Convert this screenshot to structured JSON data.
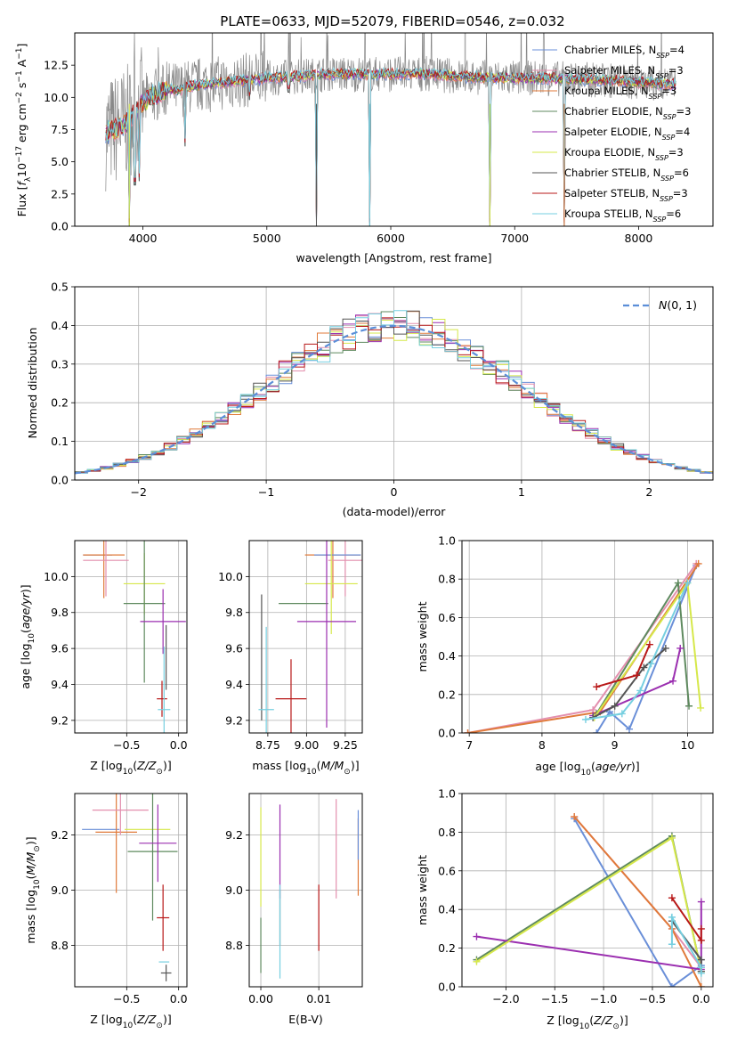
{
  "figure_title": "PLATE=0633, MJD=52079, FIBERID=0546, z=0.032",
  "colors": {
    "chabrier_miles": "#6a8fd8",
    "salpeter_miles": "#e38fae",
    "kroupa_miles": "#e07a3a",
    "chabrier_elodie": "#5f8a5f",
    "salpeter_elodie": "#9b2fb0",
    "kroupa_elodie": "#d6e84a",
    "chabrier_stelib": "#555555",
    "salpeter_stelib": "#b81818",
    "kroupa_stelib": "#76cfe0",
    "data": "#888888",
    "gaussian": "#5b8ed8"
  },
  "chart_data": [
    {
      "id": "spectrum",
      "type": "line",
      "title": "PLATE=0633, MJD=52079, FIBERID=0546, z=0.032",
      "xlabel": "wavelength [Angstrom, rest frame]",
      "ylabel": "Flux [f_λ 10^-17 erg cm^-2 s^-1 A^-1]",
      "xlim": [
        3450,
        8600
      ],
      "ylim": [
        0,
        15
      ],
      "xticks": [
        "4000",
        "5000",
        "6000",
        "7000",
        "8000"
      ],
      "yticks": [
        "0.0",
        "2.5",
        "5.0",
        "7.5",
        "10.0",
        "12.5"
      ],
      "legend_position": "top-right",
      "legend": [
        {
          "name": "Chabrier MILES, N",
          "sub": "SSP",
          "tail": "=4",
          "color": "#6a8fd8"
        },
        {
          "name": "Salpeter MILES, N",
          "sub": "SSP",
          "tail": "=3",
          "color": "#e38fae"
        },
        {
          "name": "Kroupa MILES, N",
          "sub": "SSP",
          "tail": "=3",
          "color": "#e07a3a"
        },
        {
          "name": "Chabrier ELODIE, N",
          "sub": "SSP",
          "tail": "=3",
          "color": "#5f8a5f"
        },
        {
          "name": "Salpeter ELODIE, N",
          "sub": "SSP",
          "tail": "=4",
          "color": "#9b2fb0"
        },
        {
          "name": "Kroupa ELODIE, N",
          "sub": "SSP",
          "tail": "=3",
          "color": "#d6e84a"
        },
        {
          "name": "Chabrier STELIB, N",
          "sub": "SSP",
          "tail": "=6",
          "color": "#555555"
        },
        {
          "name": "Salpeter STELIB, N",
          "sub": "SSP",
          "tail": "=3",
          "color": "#b81818"
        },
        {
          "name": "Kroupa STELIB, N",
          "sub": "SSP",
          "tail": "=6",
          "color": "#76cfe0"
        }
      ],
      "continuum": [
        [
          3700,
          7.2
        ],
        [
          3800,
          7.6
        ],
        [
          3900,
          8.3
        ],
        [
          4000,
          9.6
        ],
        [
          4100,
          10.2
        ],
        [
          4200,
          10.6
        ],
        [
          4300,
          10.6
        ],
        [
          4400,
          10.9
        ],
        [
          4600,
          11.1
        ],
        [
          4800,
          11.3
        ],
        [
          5000,
          11.5
        ],
        [
          5200,
          11.6
        ],
        [
          5500,
          11.8
        ],
        [
          5800,
          11.8
        ],
        [
          6000,
          11.8
        ],
        [
          6300,
          11.8
        ],
        [
          6600,
          11.6
        ],
        [
          6900,
          11.5
        ],
        [
          7200,
          11.5
        ],
        [
          7500,
          11.4
        ],
        [
          7800,
          11.3
        ],
        [
          8100,
          11.1
        ],
        [
          8300,
          11.0
        ]
      ],
      "dips": [
        [
          3890,
          0.0
        ],
        [
          3935,
          3.2
        ],
        [
          3970,
          3.5
        ],
        [
          4340,
          6.2
        ],
        [
          5400,
          0.0
        ],
        [
          5830,
          0.0
        ],
        [
          6800,
          0.0
        ],
        [
          7400,
          0.0
        ],
        [
          4860,
          9.8
        ],
        [
          5175,
          10.4
        ]
      ]
    },
    {
      "id": "residuals",
      "type": "histogram",
      "xlabel": "(data-model)/error",
      "ylabel": "Normed distribution",
      "xlim": [
        -2.5,
        2.5
      ],
      "ylim": [
        0,
        0.5
      ],
      "xticks": [
        "−2",
        "−1",
        "0",
        "1",
        "2"
      ],
      "yticks": [
        "0.0",
        "0.1",
        "0.2",
        "0.3",
        "0.4",
        "0.5"
      ],
      "bin_width": 0.1,
      "grid": true,
      "legend_position": "top-right",
      "gaussian_label": "N(0, 1)"
    },
    {
      "id": "age_vs_Z",
      "type": "errorbar",
      "xlabel": "Z [log10(Z/Z⊙)]",
      "ylabel": "age [log10(age/yr)]",
      "xlim": [
        -1.0,
        0.08
      ],
      "ylim": [
        9.13,
        10.2
      ],
      "xticks": [
        -0.5,
        0.0
      ],
      "yticks": [
        9.2,
        9.4,
        9.6,
        9.8,
        10.0
      ],
      "points": [
        {
          "m": "chabrier_miles",
          "x": -0.78,
          "xe": 0.14,
          "y": 10.12,
          "ye": 0.0
        },
        {
          "m": "kroupa_miles",
          "x": -0.72,
          "xe": 0.2,
          "y": 10.12,
          "ye": 0.24
        },
        {
          "m": "salpeter_miles",
          "x": -0.7,
          "xe": 0.22,
          "y": 10.09,
          "ye": 0.2
        },
        {
          "m": "kroupa_elodie",
          "x": -0.33,
          "xe": 0.2,
          "y": 9.96,
          "ye": 0.17
        },
        {
          "m": "chabrier_elodie",
          "x": -0.33,
          "xe": 0.2,
          "y": 9.85,
          "ye": 0.44
        },
        {
          "m": "salpeter_elodie",
          "x": -0.15,
          "xe": 0.22,
          "y": 9.75,
          "ye": 0.18
        },
        {
          "m": "chabrier_stelib",
          "x": -0.12,
          "xe": 0.0,
          "y": 9.55,
          "ye": 0.18
        },
        {
          "m": "salpeter_stelib",
          "x": -0.16,
          "xe": 0.05,
          "y": 9.32,
          "ye": 0.1
        },
        {
          "m": "kroupa_stelib",
          "x": -0.14,
          "xe": 0.06,
          "y": 9.26,
          "ye": 0.35
        }
      ]
    },
    {
      "id": "age_vs_mass",
      "type": "errorbar",
      "xlabel": "mass [log10(M/M⊙)]",
      "ylabel": "",
      "xlim": [
        8.63,
        9.36
      ],
      "ylim": [
        9.13,
        10.2
      ],
      "xticks": [
        8.75,
        9.0,
        9.25
      ],
      "yticks": [
        9.2,
        9.4,
        9.6,
        9.8,
        10.0
      ],
      "points": [
        {
          "m": "kroupa_miles",
          "x": 9.17,
          "xe": 0.18,
          "y": 10.12,
          "ye": 0.24
        },
        {
          "m": "salpeter_miles",
          "x": 9.25,
          "xe": 0.11,
          "y": 10.09,
          "ye": 0.2
        },
        {
          "m": "chabrier_miles",
          "x": 9.2,
          "xe": 0.15,
          "y": 10.12,
          "ye": 0.0
        },
        {
          "m": "kroupa_elodie",
          "x": 9.16,
          "xe": 0.17,
          "y": 9.96,
          "ye": 0.28
        },
        {
          "m": "chabrier_elodie",
          "x": 8.98,
          "xe": 0.16,
          "y": 9.85,
          "ye": 0.0
        },
        {
          "m": "salpeter_elodie",
          "x": 9.13,
          "xe": 0.19,
          "y": 9.75,
          "ye": 0.59
        },
        {
          "m": "chabrier_stelib",
          "x": 8.71,
          "xe": 0.0,
          "y": 9.55,
          "ye": 0.35
        },
        {
          "m": "salpeter_stelib",
          "x": 8.9,
          "xe": 0.1,
          "y": 9.32,
          "ye": 0.22
        },
        {
          "m": "kroupa_stelib",
          "x": 8.74,
          "xe": 0.05,
          "y": 9.26,
          "ye": 0.46
        }
      ]
    },
    {
      "id": "weight_vs_age",
      "type": "line",
      "xlabel": "age [log10(age/yr)]",
      "ylabel": "mass weight",
      "xlim": [
        6.9,
        10.35
      ],
      "ylim": [
        0,
        1
      ],
      "xticks": [
        7,
        8,
        9,
        10
      ],
      "yticks": [
        0.0,
        0.2,
        0.4,
        0.6,
        0.8,
        1.0
      ],
      "grid": true,
      "series": [
        {
          "m": "chabrier_miles",
          "pts": [
            [
              8.75,
              0.0
            ],
            [
              8.93,
              0.11
            ],
            [
              9.2,
              0.02
            ],
            [
              10.12,
              0.87
            ]
          ]
        },
        {
          "m": "salpeter_miles",
          "pts": [
            [
              6.98,
              0.0
            ],
            [
              8.7,
              0.12
            ],
            [
              10.12,
              0.88
            ]
          ]
        },
        {
          "m": "kroupa_miles",
          "pts": [
            [
              6.98,
              0.0
            ],
            [
              8.8,
              0.11
            ],
            [
              10.15,
              0.88
            ]
          ]
        },
        {
          "m": "chabrier_elodie",
          "pts": [
            [
              8.75,
              0.1
            ],
            [
              9.87,
              0.78
            ],
            [
              10.02,
              0.14
            ]
          ]
        },
        {
          "m": "salpeter_elodie",
          "pts": [
            [
              8.7,
              0.09
            ],
            [
              9.8,
              0.27
            ],
            [
              9.9,
              0.44
            ]
          ]
        },
        {
          "m": "kroupa_elodie",
          "pts": [
            [
              8.72,
              0.08
            ],
            [
              10.0,
              0.78
            ],
            [
              10.18,
              0.13
            ]
          ]
        },
        {
          "m": "chabrier_stelib",
          "pts": [
            [
              8.7,
              0.08
            ],
            [
              9.0,
              0.14
            ],
            [
              9.4,
              0.34
            ],
            [
              9.7,
              0.44
            ]
          ]
        },
        {
          "m": "salpeter_stelib",
          "pts": [
            [
              8.75,
              0.24
            ],
            [
              9.3,
              0.3
            ],
            [
              9.48,
              0.46
            ]
          ]
        },
        {
          "m": "kroupa_stelib",
          "pts": [
            [
              8.6,
              0.07
            ],
            [
              9.1,
              0.1
            ],
            [
              9.35,
              0.22
            ],
            [
              9.5,
              0.36
            ],
            [
              10.0,
              0.78
            ]
          ]
        }
      ]
    },
    {
      "id": "mass_vs_Z",
      "type": "errorbar",
      "xlabel": "Z [log10(Z/Z⊙)]",
      "ylabel": "mass [log10(M/M⊙)]",
      "xlim": [
        -1.0,
        0.08
      ],
      "ylim": [
        8.65,
        9.35
      ],
      "xticks": [
        -0.5,
        0.0
      ],
      "yticks": [
        8.8,
        9.0,
        9.2
      ],
      "points": [
        {
          "m": "chabrier_miles",
          "x": -0.75,
          "xe": 0.18,
          "y": 9.22,
          "ye": 0.0
        },
        {
          "m": "kroupa_miles",
          "x": -0.6,
          "xe": 0.2,
          "y": 9.21,
          "ye": 0.22
        },
        {
          "m": "salpeter_miles",
          "x": -0.56,
          "xe": 0.27,
          "y": 9.29,
          "ye": 0.09
        },
        {
          "m": "kroupa_elodie",
          "x": -0.3,
          "xe": 0.22,
          "y": 9.22,
          "ye": 0.0
        },
        {
          "m": "chabrier_elodie",
          "x": -0.25,
          "xe": 0.24,
          "y": 9.14,
          "ye": 0.25
        },
        {
          "m": "salpeter_elodie",
          "x": -0.2,
          "xe": 0.18,
          "y": 9.17,
          "ye": 0.14
        },
        {
          "m": "salpeter_stelib",
          "x": -0.15,
          "xe": 0.06,
          "y": 8.9,
          "ye": 0.12
        },
        {
          "m": "kroupa_stelib",
          "x": -0.14,
          "xe": 0.05,
          "y": 8.74,
          "ye": 0.0
        },
        {
          "m": "chabrier_stelib",
          "x": -0.12,
          "xe": 0.05,
          "y": 8.7,
          "ye": 0.03
        }
      ]
    },
    {
      "id": "mass_vs_ebv",
      "type": "errorbar",
      "xlabel": "E(B-V)",
      "ylabel": "",
      "xlim": [
        -0.002,
        0.0175
      ],
      "ylim": [
        8.65,
        9.35
      ],
      "xticks": [
        0.0,
        0.01
      ],
      "yticks": [
        8.8,
        9.0,
        9.2
      ],
      "points": [
        {
          "m": "kroupa_elodie",
          "x": 0.0,
          "xe": 0.0,
          "y": 9.12,
          "ye": 0.18
        },
        {
          "m": "chabrier_elodie",
          "x": 0.0,
          "xe": 0.0,
          "y": 8.8,
          "ye": 0.1
        },
        {
          "m": "salpeter_elodie",
          "x": 0.0033,
          "xe": 0.0,
          "y": 9.14,
          "ye": 0.17
        },
        {
          "m": "chabrier_stelib",
          "x": 0.0033,
          "xe": 0.0,
          "y": 8.9,
          "ye": 0.1
        },
        {
          "m": "kroupa_stelib",
          "x": 0.0033,
          "xe": 0.0,
          "y": 8.85,
          "ye": 0.17
        },
        {
          "m": "salpeter_stelib",
          "x": 0.01,
          "xe": 0.0,
          "y": 8.9,
          "ye": 0.12
        },
        {
          "m": "salpeter_miles",
          "x": 0.013,
          "xe": 0.0,
          "y": 9.15,
          "ye": 0.18
        },
        {
          "m": "kroupa_miles",
          "x": 0.0168,
          "xe": 0.0,
          "y": 9.12,
          "ye": 0.14
        },
        {
          "m": "chabrier_miles",
          "x": 0.0168,
          "xe": 0.0,
          "y": 9.2,
          "ye": 0.09
        }
      ]
    },
    {
      "id": "weight_vs_Z",
      "type": "line",
      "xlabel": "Z [log10(Z/Z⊙)]",
      "ylabel": "mass weight",
      "xlim": [
        -2.45,
        0.12
      ],
      "ylim": [
        0,
        1
      ],
      "xticks": [
        -2.0,
        -1.5,
        -1.0,
        -0.5,
        0.0
      ],
      "yticks": [
        0.0,
        0.2,
        0.4,
        0.6,
        0.8,
        1.0
      ],
      "grid": true,
      "series": [
        {
          "m": "chabrier_miles",
          "pts": [
            [
              -1.3,
              0.87
            ],
            [
              -0.3,
              0.0
            ],
            [
              0.0,
              0.11
            ]
          ]
        },
        {
          "m": "salpeter_miles",
          "pts": [
            [
              -1.3,
              0.88
            ],
            [
              -0.3,
              0.3
            ],
            [
              0.0,
              0.1
            ]
          ]
        },
        {
          "m": "kroupa_miles",
          "pts": [
            [
              -1.3,
              0.88
            ],
            [
              -0.3,
              0.3
            ],
            [
              0.0,
              0.0
            ]
          ]
        },
        {
          "m": "chabrier_elodie",
          "pts": [
            [
              -2.3,
              0.14
            ],
            [
              -0.3,
              0.78
            ],
            [
              0.0,
              0.08
            ]
          ]
        },
        {
          "m": "salpeter_elodie",
          "pts": [
            [
              -2.3,
              0.26
            ],
            [
              0.0,
              0.09
            ],
            [
              0.0,
              0.44
            ]
          ]
        },
        {
          "m": "kroupa_elodie",
          "pts": [
            [
              -2.3,
              0.13
            ],
            [
              -0.3,
              0.77
            ],
            [
              0.0,
              0.08
            ]
          ]
        },
        {
          "m": "chabrier_stelib",
          "pts": [
            [
              -0.3,
              0.34
            ],
            [
              0.0,
              0.14
            ],
            [
              0.0,
              0.08
            ]
          ]
        },
        {
          "m": "salpeter_stelib",
          "pts": [
            [
              -0.3,
              0.46
            ],
            [
              0.0,
              0.24
            ],
            [
              0.0,
              0.3
            ]
          ]
        },
        {
          "m": "kroupa_stelib",
          "pts": [
            [
              -0.3,
              0.22
            ],
            [
              -0.3,
              0.36
            ],
            [
              0.0,
              0.1
            ],
            [
              0.0,
              0.07
            ]
          ]
        }
      ]
    }
  ]
}
